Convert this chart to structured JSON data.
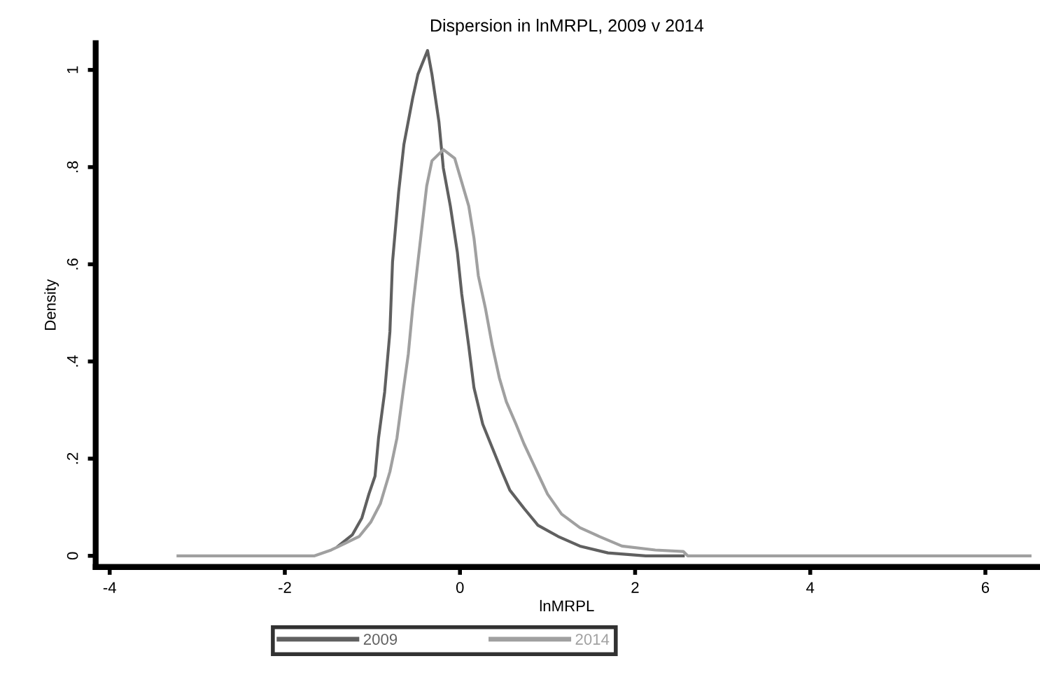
{
  "chart_data": {
    "type": "line",
    "title": "Dispersion in lnMRPL, 2009 v 2014",
    "xlabel": "lnMRPL",
    "ylabel": "Density",
    "xlim": [
      -4.16,
      6.6
    ],
    "ylim": [
      -0.023,
      1.055
    ],
    "xticks": [
      -4,
      -2,
      0,
      2,
      4,
      6
    ],
    "yticks": [
      0,
      {
        "value": 0.2,
        "label": ".2"
      },
      {
        "value": 0.4,
        "label": ".4"
      },
      {
        "value": 0.6,
        "label": ".6"
      },
      {
        "value": 0.8,
        "label": ".8"
      },
      1
    ],
    "grid": false,
    "legend": "bottom",
    "marker": "none",
    "line_style": "solid",
    "series": [
      {
        "name": "2009",
        "color": "#606060",
        "x": [
          -1.39,
          -1.23,
          -1.12,
          -1.04,
          -0.97,
          -0.93,
          -0.86,
          -0.8,
          -0.77,
          -0.7,
          -0.64,
          -0.54,
          -0.48,
          -0.37,
          -0.32,
          -0.24,
          -0.19,
          -0.11,
          -0.03,
          0.02,
          0.1,
          0.16,
          0.26,
          0.37,
          0.48,
          0.57,
          0.73,
          0.89,
          1.12,
          1.37,
          1.69,
          2.12,
          2.55
        ],
        "values": [
          0.02,
          0.043,
          0.078,
          0.127,
          0.164,
          0.242,
          0.337,
          0.461,
          0.605,
          0.749,
          0.847,
          0.942,
          0.991,
          1.04,
          0.991,
          0.893,
          0.798,
          0.72,
          0.625,
          0.539,
          0.432,
          0.346,
          0.271,
          0.222,
          0.173,
          0.135,
          0.098,
          0.063,
          0.04,
          0.02,
          0.006,
          0,
          0
        ]
      },
      {
        "name": "2014",
        "color": "#a0a0a0",
        "x": [
          -3.22,
          -1.66,
          -1.47,
          -1.31,
          -1.15,
          -1.02,
          -0.91,
          -0.8,
          -0.72,
          -0.65,
          -0.59,
          -0.54,
          -0.48,
          -0.43,
          -0.38,
          -0.32,
          -0.19,
          -0.06,
          0.02,
          0.1,
          0.16,
          0.21,
          0.29,
          0.37,
          0.45,
          0.53,
          0.64,
          0.73,
          0.88,
          1.0,
          1.16,
          1.37,
          1.59,
          1.85,
          2.23,
          2.55,
          2.6,
          6.51
        ],
        "values": [
          0,
          0,
          0.012,
          0.026,
          0.04,
          0.069,
          0.107,
          0.173,
          0.242,
          0.337,
          0.415,
          0.51,
          0.605,
          0.683,
          0.761,
          0.813,
          0.836,
          0.818,
          0.769,
          0.72,
          0.654,
          0.576,
          0.51,
          0.432,
          0.366,
          0.317,
          0.271,
          0.231,
          0.173,
          0.127,
          0.086,
          0.058,
          0.04,
          0.02,
          0.012,
          0.009,
          0,
          0
        ]
      }
    ]
  }
}
